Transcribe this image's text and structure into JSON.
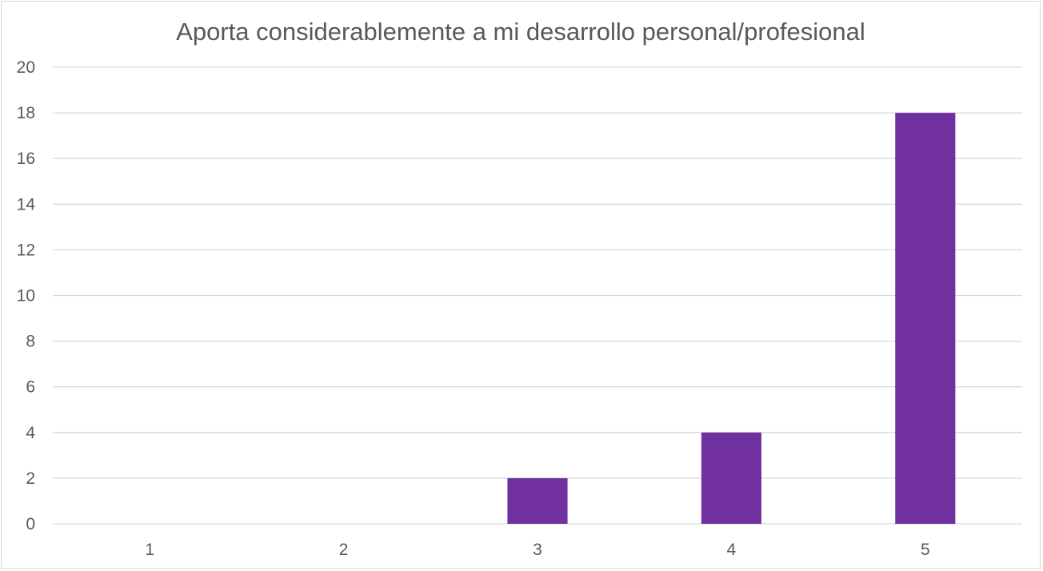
{
  "chart_data": {
    "type": "bar",
    "title": "Aporta considerablemente a mi desarrollo personal/profesional",
    "categories": [
      "1",
      "2",
      "3",
      "4",
      "5"
    ],
    "values": [
      0,
      0,
      2,
      4,
      18
    ],
    "xlabel": "",
    "ylabel": "",
    "ylim": [
      0,
      20
    ],
    "yticks": [
      "0",
      "2",
      "4",
      "6",
      "8",
      "10",
      "12",
      "14",
      "16",
      "18",
      "20"
    ],
    "grid": true,
    "legend": "none",
    "bar_color": "#7030a0"
  }
}
